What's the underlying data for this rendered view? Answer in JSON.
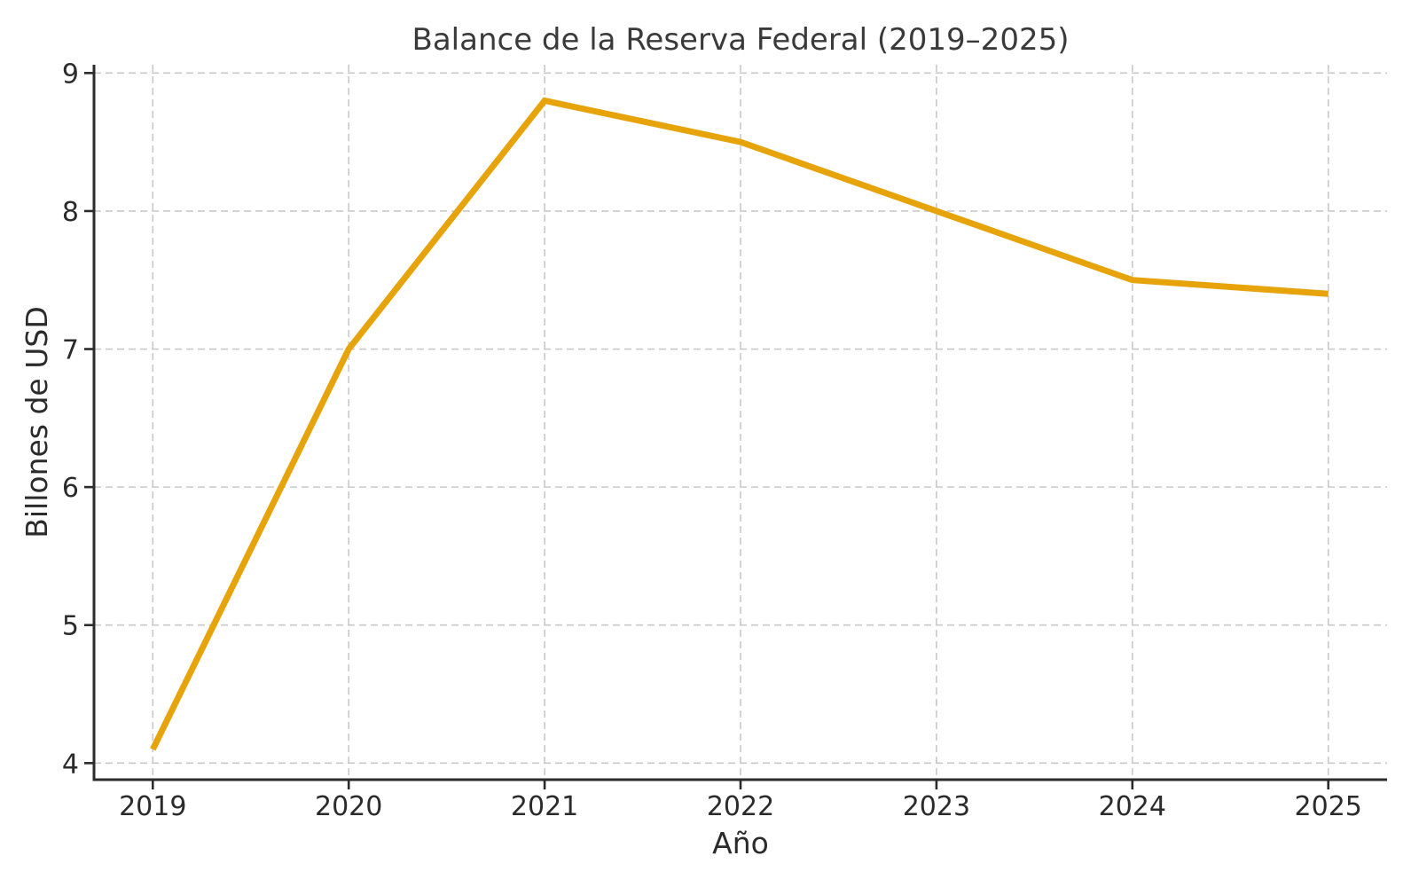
{
  "chart_data": {
    "type": "line",
    "title": "Balance de la Reserva Federal (2019–2025)",
    "xlabel": "Año",
    "ylabel": "Billones de USD",
    "x": [
      2019,
      2020,
      2021,
      2022,
      2023,
      2024,
      2025
    ],
    "values": [
      4.1,
      7.0,
      8.8,
      8.5,
      8.0,
      7.5,
      7.4
    ],
    "xticks": [
      "2019",
      "2020",
      "2021",
      "2022",
      "2023",
      "2024",
      "2025"
    ],
    "yticks": [
      "4",
      "5",
      "6",
      "7",
      "8",
      "9"
    ],
    "xlim": [
      2018.7,
      2025.3
    ],
    "ylim": [
      3.88,
      9.06
    ],
    "grid": true,
    "grid_style": "dashed",
    "legend": "none",
    "style": {
      "line_color": "#E7A30A",
      "line_width": 7,
      "grid_color": "#c9c9c9",
      "axis_color": "#2b2b2b",
      "text_color": "#2b2b2b",
      "title_color": "#3a3a3a",
      "background": "#ffffff"
    }
  }
}
